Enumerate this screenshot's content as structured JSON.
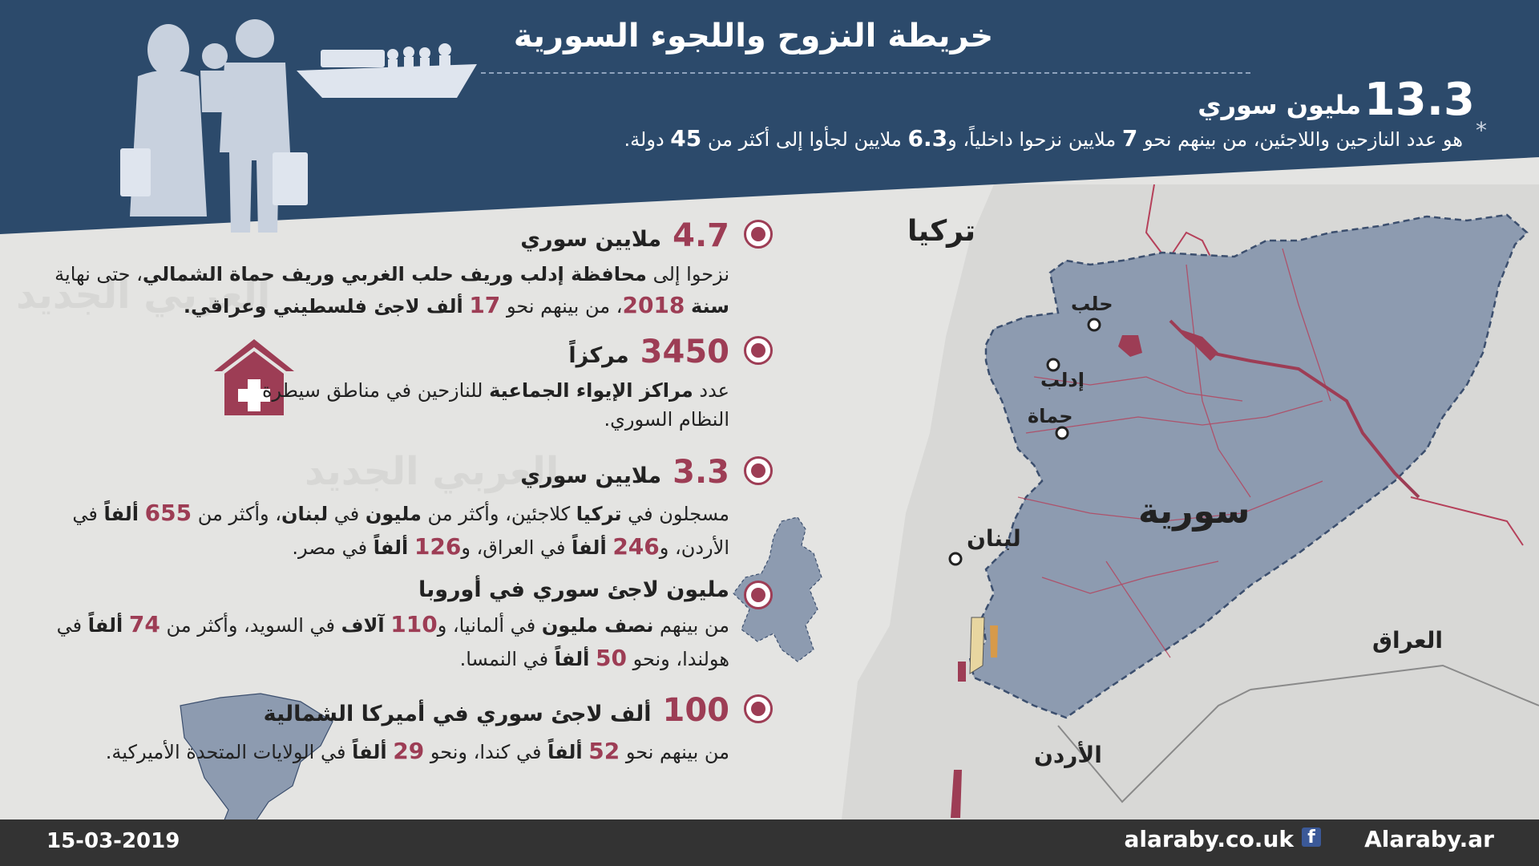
{
  "header": {
    "title": "خريطة النزوح واللجوء السورية",
    "total_number": "13.3",
    "total_unit": "مليون سوري",
    "footnote_mark": "*",
    "summary_p1": "هو عدد النازحين واللاجئين، من بينهم نحو",
    "summary_n1": "7",
    "summary_p2": "ملايين نزحوا داخلياً، و",
    "summary_n2": "6.3",
    "summary_p3": "ملايين لجأوا إلى أكثر من",
    "summary_n3": "45",
    "summary_p4": "دولة."
  },
  "sections": [
    {
      "number": "4.7",
      "unit": "ملايين سوري",
      "t1": "نزحوا إلى",
      "b1": "محافظة إدلب وريف حلب الغربي وريف حماة الشمالي",
      "t2": "، حتى نهاية",
      "b2": "سنة",
      "h1": "2018",
      "t3": "، من بينهم نحو",
      "h2": "17",
      "b3": "ألف لاجئ فلسطيني وعراقي."
    },
    {
      "number": "3450",
      "unit": "مركزاً",
      "t1": "عدد",
      "b1": "مراكز الإيواء الجماعية",
      "t2": "للنازحين في مناطق سيطرة النظام السوري."
    },
    {
      "number": "3.3",
      "unit": "ملايين سوري",
      "t1": "مسجلون في",
      "b1": "تركيا",
      "t2": "كلاجئين، وأكثر من",
      "b2": "مليون",
      "t3": "في",
      "b3": "لبنان",
      "t4": "، وأكثر من",
      "h1": "655",
      "b4": "ألفاً",
      "t5": "في الأردن، و",
      "h2": "246",
      "b5": "ألفاً",
      "t6": "في العراق، و",
      "h3": "126",
      "b6": "ألفاً",
      "t7": "في مصر."
    },
    {
      "head": "مليون لاجئ سوري في أوروبا",
      "t1": "من بينهم",
      "b1": "نصف مليون",
      "t2": "في ألمانيا، و",
      "h1": "110",
      "b2": "آلاف",
      "t3": "في السويد، وأكثر من",
      "h2": "74",
      "b3": "ألفاً",
      "t4": "في هولندا، ونحو",
      "h3": "50",
      "b4": "ألفاً",
      "t5": "في النمسا."
    },
    {
      "number": "100",
      "unit": "ألف لاجئ سوري في أميركا الشمالية",
      "t1": "من بينهم نحو",
      "h1": "52",
      "b1": "ألفاً",
      "t2": "في كندا، ونحو",
      "h2": "29",
      "b2": "ألفاً",
      "t3": "في الولايات المتحدة الأميركية."
    }
  ],
  "map": {
    "countries": {
      "turkey": "تركيا",
      "syria": "سورية",
      "iraq": "العراق",
      "lebanon": "لبنان",
      "jordan": "الأردن"
    },
    "cities": {
      "aleppo": "حلب",
      "idlib": "إدلب",
      "hama": "حماة"
    }
  },
  "watermark": "العربي الجديد",
  "footer": {
    "date": "15-03-2019",
    "website": "alaraby.co.uk",
    "facebook_icon": "facebook-icon",
    "facebook_page": "Alaraby.ar"
  },
  "colors": {
    "header_bg": "#2c4a6b",
    "accent": "#9d3d55",
    "syria_fill": "#8d9bb0",
    "footer_bg": "#333333"
  }
}
